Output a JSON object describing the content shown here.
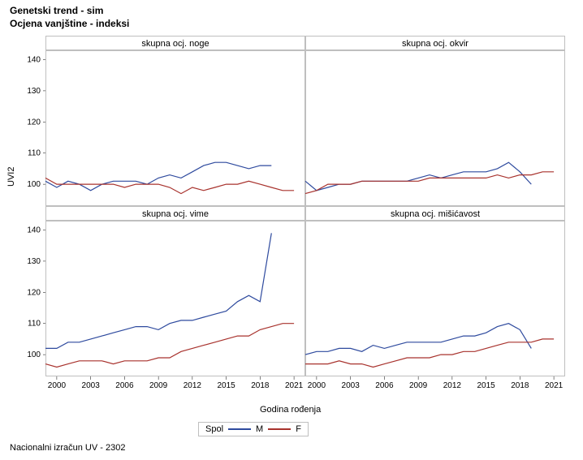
{
  "title_line1": "Genetski trend - sim",
  "title_line2": "Ocjena vanjštine - indeksi",
  "footer_text": "Nacionalni izračun UV - 2302",
  "y_axis_label": "UVI2",
  "x_axis_label": "Godina rođenja",
  "legend": {
    "title": "Spol",
    "items": [
      {
        "label": "M",
        "color": "#2e4a9e"
      },
      {
        "label": "F",
        "color": "#a8322d"
      }
    ]
  },
  "grid": {
    "background_color": "#ffffff",
    "outer_border_color": "#bfbfbf",
    "panel_title_bg": "#ffffff",
    "line_width": 1.2,
    "title_fontsize": 11,
    "axis_fontsize": 10
  },
  "x": {
    "ticks": [
      2000,
      2003,
      2006,
      2009,
      2012,
      2015,
      2018,
      2021
    ],
    "lim": [
      1999,
      2022
    ]
  },
  "y": {
    "ticks": [
      100,
      110,
      120,
      130,
      140
    ],
    "lim": [
      93,
      143
    ]
  },
  "years": [
    1999,
    2000,
    2001,
    2002,
    2003,
    2004,
    2005,
    2006,
    2007,
    2008,
    2009,
    2010,
    2011,
    2012,
    2013,
    2014,
    2015,
    2016,
    2017,
    2018,
    2019,
    2020,
    2021
  ],
  "panels": [
    {
      "title": "skupna ocj. noge",
      "series": {
        "M": [
          101,
          99,
          101,
          100,
          98,
          100,
          101,
          101,
          101,
          100,
          102,
          103,
          102,
          104,
          106,
          107,
          107,
          106,
          105,
          106,
          106,
          null,
          null
        ],
        "F": [
          102,
          100,
          100,
          100,
          100,
          100,
          100,
          99,
          100,
          100,
          100,
          99,
          97,
          99,
          98,
          99,
          100,
          100,
          101,
          100,
          99,
          98,
          98
        ]
      }
    },
    {
      "title": "skupna ocj. okvir",
      "series": {
        "M": [
          101,
          98,
          99,
          100,
          100,
          101,
          101,
          101,
          101,
          101,
          102,
          103,
          102,
          103,
          104,
          104,
          104,
          105,
          107,
          104,
          100,
          null,
          null
        ],
        "F": [
          97,
          98,
          100,
          100,
          100,
          101,
          101,
          101,
          101,
          101,
          101,
          102,
          102,
          102,
          102,
          102,
          102,
          103,
          102,
          103,
          103,
          104,
          104
        ]
      }
    },
    {
      "title": "skupna ocj. vime",
      "series": {
        "M": [
          102,
          102,
          104,
          104,
          105,
          106,
          107,
          108,
          109,
          109,
          108,
          110,
          111,
          111,
          112,
          113,
          114,
          117,
          119,
          117,
          139,
          null,
          null
        ],
        "F": [
          97,
          96,
          97,
          98,
          98,
          98,
          97,
          98,
          98,
          98,
          99,
          99,
          101,
          102,
          103,
          104,
          105,
          106,
          106,
          108,
          109,
          110,
          110
        ]
      }
    },
    {
      "title": "skupna ocj. mišićavost",
      "series": {
        "M": [
          100,
          101,
          101,
          102,
          102,
          101,
          103,
          102,
          103,
          104,
          104,
          104,
          104,
          105,
          106,
          106,
          107,
          109,
          110,
          108,
          102,
          null,
          null
        ],
        "F": [
          97,
          97,
          97,
          98,
          97,
          97,
          96,
          97,
          98,
          99,
          99,
          99,
          100,
          100,
          101,
          101,
          102,
          103,
          104,
          104,
          104,
          105,
          105
        ]
      }
    }
  ]
}
